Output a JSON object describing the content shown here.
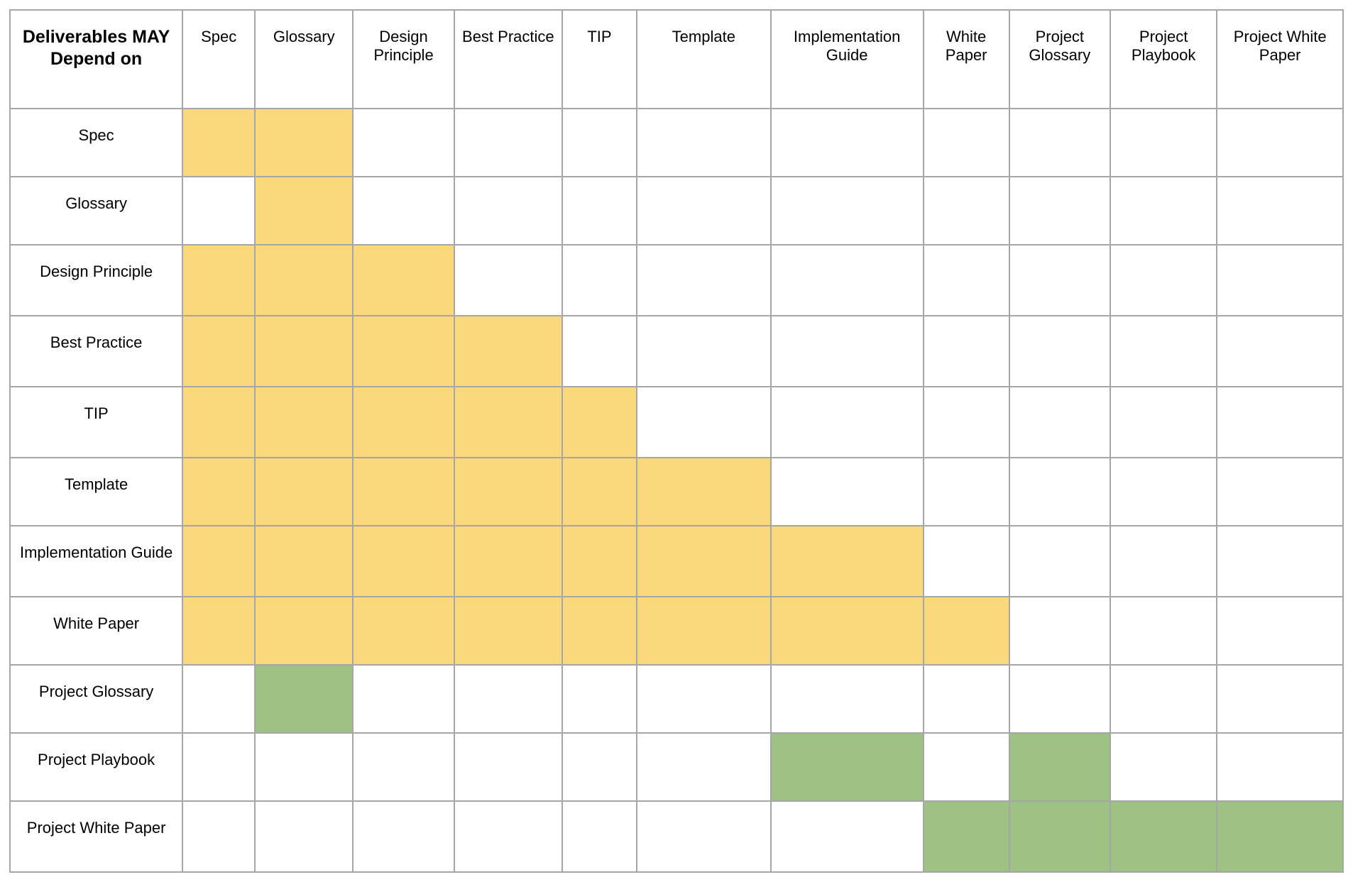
{
  "corner_label": "Deliverables MAY Depend on",
  "columns": [
    "Spec",
    "Glossary",
    "Design Principle",
    "Best Practice",
    "TIP",
    "Template",
    "Implementation Guide",
    "White Paper",
    "Project Glossary",
    "Project Playbook",
    "Project White Paper"
  ],
  "colors": {
    "standard_dependency": "#f9d97c",
    "project_dependency": "#9dc284",
    "grid": "#a6a6a6"
  },
  "rows": [
    {
      "label": "Spec",
      "cells": [
        "yellow",
        "yellow",
        "",
        "",
        "",
        "",
        "",
        "",
        "",
        "",
        ""
      ]
    },
    {
      "label": "Glossary",
      "cells": [
        "",
        "yellow",
        "",
        "",
        "",
        "",
        "",
        "",
        "",
        "",
        ""
      ]
    },
    {
      "label": "Design Principle",
      "cells": [
        "yellow",
        "yellow",
        "yellow",
        "",
        "",
        "",
        "",
        "",
        "",
        "",
        ""
      ]
    },
    {
      "label": "Best Practice",
      "cells": [
        "yellow",
        "yellow",
        "yellow",
        "yellow",
        "",
        "",
        "",
        "",
        "",
        "",
        ""
      ]
    },
    {
      "label": "TIP",
      "cells": [
        "yellow",
        "yellow",
        "yellow",
        "yellow",
        "yellow",
        "",
        "",
        "",
        "",
        "",
        ""
      ]
    },
    {
      "label": "Template",
      "cells": [
        "yellow",
        "yellow",
        "yellow",
        "yellow",
        "yellow",
        "yellow",
        "",
        "",
        "",
        "",
        ""
      ]
    },
    {
      "label": "Implementation Guide",
      "cells": [
        "yellow",
        "yellow",
        "yellow",
        "yellow",
        "yellow",
        "yellow",
        "yellow",
        "",
        "",
        "",
        ""
      ]
    },
    {
      "label": "White Paper",
      "cells": [
        "yellow",
        "yellow",
        "yellow",
        "yellow",
        "yellow",
        "yellow",
        "yellow",
        "yellow",
        "",
        "",
        ""
      ]
    },
    {
      "label": "Project Glossary",
      "cells": [
        "",
        "green",
        "",
        "",
        "",
        "",
        "",
        "",
        "",
        "",
        ""
      ]
    },
    {
      "label": "Project Playbook",
      "cells": [
        "",
        "",
        "",
        "",
        "",
        "",
        "green",
        "",
        "green",
        "",
        ""
      ]
    },
    {
      "label": "Project White Paper",
      "cells": [
        "",
        "",
        "",
        "",
        "",
        "",
        "",
        "green",
        "green",
        "green",
        "green"
      ]
    }
  ]
}
